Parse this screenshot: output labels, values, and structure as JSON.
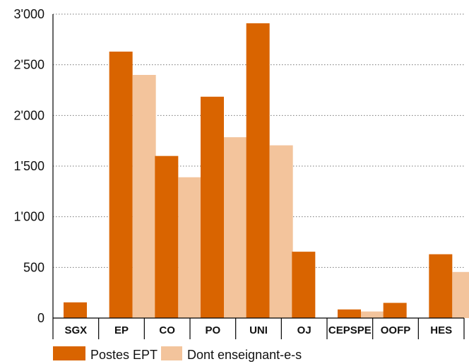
{
  "chart_data": {
    "type": "bar",
    "categories": [
      "SGX",
      "EP",
      "CO",
      "PO",
      "UNI",
      "OJ",
      "CEPSPE",
      "OOFP",
      "HES"
    ],
    "series": [
      {
        "name": "Postes EPT",
        "color": "#D96400",
        "values": [
          155,
          2630,
          1600,
          2185,
          2910,
          655,
          85,
          150,
          630
        ]
      },
      {
        "name": "Dont enseignant-e-s",
        "color": "#F3C49C",
        "values": [
          0,
          2400,
          1390,
          1785,
          1705,
          0,
          65,
          0,
          455
        ]
      }
    ],
    "y_ticks": [
      "0",
      "500",
      "1'000",
      "1'500",
      "2'000",
      "2'500",
      "3'000"
    ],
    "y_tick_values": [
      0,
      500,
      1000,
      1500,
      2000,
      2500,
      3000
    ],
    "ylim": [
      0,
      3000
    ],
    "grid": true,
    "legend_position": "bottom-left"
  }
}
